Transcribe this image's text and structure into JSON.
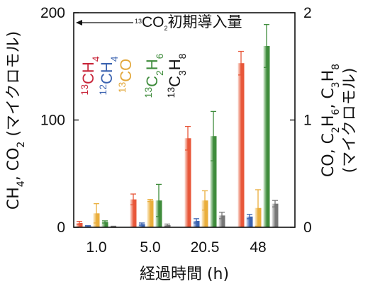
{
  "chart_data": {
    "type": "bar",
    "categories": [
      "1.0",
      "5.0",
      "20.5",
      "48"
    ],
    "xlabel": "経過時間 (h)",
    "left_axis": {
      "label_parts": [
        {
          "t": "CH"
        },
        {
          "t": "4",
          "sub": true
        },
        {
          "t": ", CO"
        },
        {
          "t": "2",
          "sub": true
        },
        {
          "t": " (マイクロモル)"
        }
      ],
      "ylim": [
        0,
        200
      ],
      "ticks": [
        "0",
        "100",
        "200"
      ]
    },
    "right_axis": {
      "label_parts": [
        {
          "t": "CO, C"
        },
        {
          "t": "2",
          "sub": true
        },
        {
          "t": "H"
        },
        {
          "t": "6",
          "sub": true
        },
        {
          "t": ", C"
        },
        {
          "t": "3",
          "sub": true
        },
        {
          "t": "H"
        },
        {
          "t": "8",
          "sub": true
        }
      ],
      "label_line2": "(マイクロモル)",
      "ylim": [
        0,
        2
      ],
      "ticks": [
        "0",
        "1",
        "2"
      ]
    },
    "annotation": {
      "parts": [
        {
          "t": "13",
          "sup": true
        },
        {
          "t": "CO"
        },
        {
          "t": "2",
          "sub": true
        },
        {
          "t": "初期導入量"
        }
      ],
      "arrow": "left",
      "y_value": 200
    },
    "series": [
      {
        "name_parts": [
          {
            "t": "13",
            "sup": true
          },
          {
            "t": "CH"
          },
          {
            "t": "4",
            "sub": true
          }
        ],
        "axis": "left",
        "color": "#e8573a",
        "light": "#fbe1d8",
        "values": [
          4,
          26,
          83,
          153
        ],
        "errors": [
          1.5,
          5,
          11,
          11
        ]
      },
      {
        "name_parts": [
          {
            "t": "12",
            "sup": true
          },
          {
            "t": "CH"
          },
          {
            "t": "4",
            "sub": true
          }
        ],
        "axis": "left",
        "color": "#3b63b0",
        "light": "#d6e0f3",
        "values": [
          1,
          3,
          6,
          10
        ],
        "errors": [
          0.5,
          1,
          2,
          2
        ]
      },
      {
        "name_parts": [
          {
            "t": "13",
            "sup": true
          },
          {
            "t": "CO"
          }
        ],
        "axis": "right",
        "color": "#eaae3c",
        "light": "#fbedcf",
        "values": [
          0.13,
          0.25,
          0.25,
          0.18
        ],
        "errors": [
          0.09,
          0.01,
          0.09,
          0.17
        ]
      },
      {
        "name_parts": [
          {
            "t": "13",
            "sup": true
          },
          {
            "t": "C"
          },
          {
            "t": "2",
            "sub": true
          },
          {
            "t": "H"
          },
          {
            "t": "6",
            "sub": true
          }
        ],
        "axis": "right",
        "color": "#3f8c3c",
        "light": "#d9ecd6",
        "values": [
          0.05,
          0.25,
          0.85,
          1.69
        ],
        "errors": [
          0.01,
          0.15,
          0.23,
          0.2
        ]
      },
      {
        "name_parts": [
          {
            "t": "13",
            "sup": true
          },
          {
            "t": "C"
          },
          {
            "t": "3",
            "sub": true
          },
          {
            "t": "H"
          },
          {
            "t": "8",
            "sub": true
          }
        ],
        "axis": "right",
        "color": "#777777",
        "light": "#e6e6e6",
        "values": [
          0.005,
          0.02,
          0.11,
          0.22
        ],
        "errors": [
          0.005,
          0.01,
          0.03,
          0.03
        ]
      }
    ],
    "legend_colors": [
      "#c8263a",
      "#3b63b0",
      "#e2a73a",
      "#3f8c3c",
      "#111111"
    ],
    "grid": false,
    "legend_position": "top-left-inside"
  }
}
